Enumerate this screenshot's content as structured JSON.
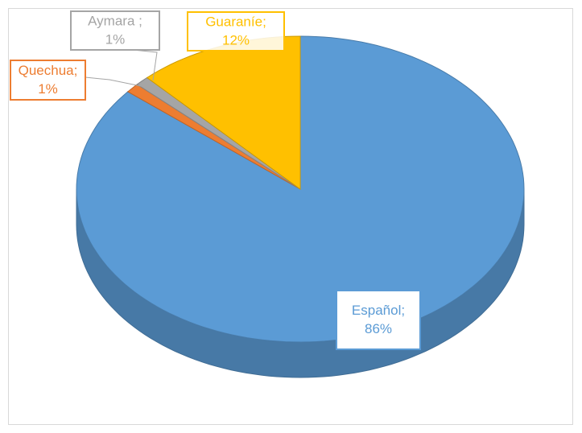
{
  "chart_data": {
    "type": "pie3d",
    "categories": [
      "Español;",
      "Quechua;",
      "Aymara ;",
      "Guaraníe;"
    ],
    "values": [
      86,
      1,
      1,
      12
    ],
    "value_labels": [
      "86%",
      "1%",
      "1%",
      "12%"
    ],
    "colors": [
      "#5b9bd5",
      "#ed7d31",
      "#a5a5a5",
      "#ffc000"
    ]
  }
}
